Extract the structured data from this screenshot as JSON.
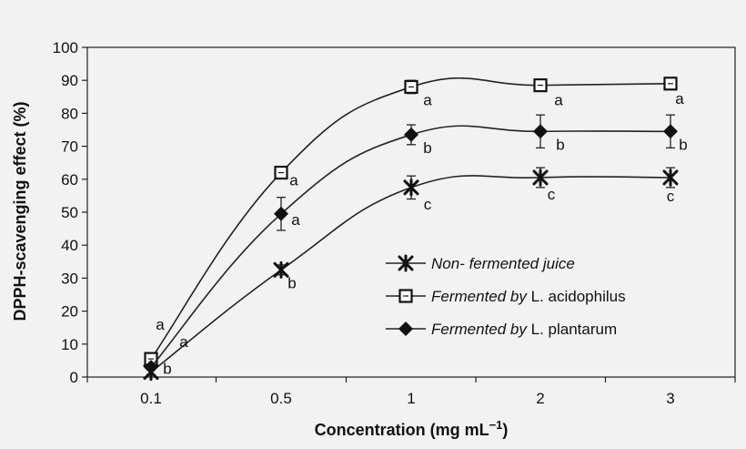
{
  "chart_data": {
    "type": "line",
    "title": "",
    "xlabel": "Concentration (mg mL",
    "xlabel_sup": "−1",
    "xlabel_close": ")",
    "ylabel": "DPPH-scavenging effect (%)",
    "categories": [
      "0.1",
      "0.5",
      "1",
      "2",
      "3"
    ],
    "ylim": [
      0,
      100
    ],
    "yticks": [
      0,
      10,
      20,
      30,
      40,
      50,
      60,
      70,
      80,
      90,
      100
    ],
    "legend_position": "lower-right",
    "series": [
      {
        "name": "Non- fermented juice",
        "legend_parts": [
          {
            "text": "Non- fermented juice",
            "italic": true
          }
        ],
        "marker": "asterisk",
        "values": [
          1.5,
          32.5,
          57.5,
          60.5,
          60.5
        ],
        "errors": [
          0.8,
          1.5,
          3.5,
          3.0,
          3.0
        ],
        "letters": [
          "b",
          "b",
          "c",
          "c",
          "c"
        ]
      },
      {
        "name": "Fermented by L. acidophilus",
        "legend_parts": [
          {
            "text": "Fermented by",
            "italic": true
          },
          {
            "text": " L. acidophilus",
            "italic": false
          }
        ],
        "marker": "square",
        "values": [
          5.5,
          62,
          88,
          88.5,
          89
        ],
        "errors": [
          1.0,
          1.0,
          2.0,
          1.0,
          1.0
        ],
        "letters": [
          "a",
          "a",
          "a",
          "a",
          "a"
        ]
      },
      {
        "name": "Fermented by L. plantarum",
        "legend_parts": [
          {
            "text": "Fermented by",
            "italic": true
          },
          {
            "text": " L. plantarum",
            "italic": false
          }
        ],
        "marker": "diamond",
        "values": [
          3.0,
          49.5,
          73.5,
          74.5,
          74.5
        ],
        "errors": [
          0.8,
          5.0,
          3.0,
          5.0,
          5.0
        ],
        "letters": [
          "a",
          "a",
          "b",
          "b",
          "b"
        ]
      }
    ]
  }
}
